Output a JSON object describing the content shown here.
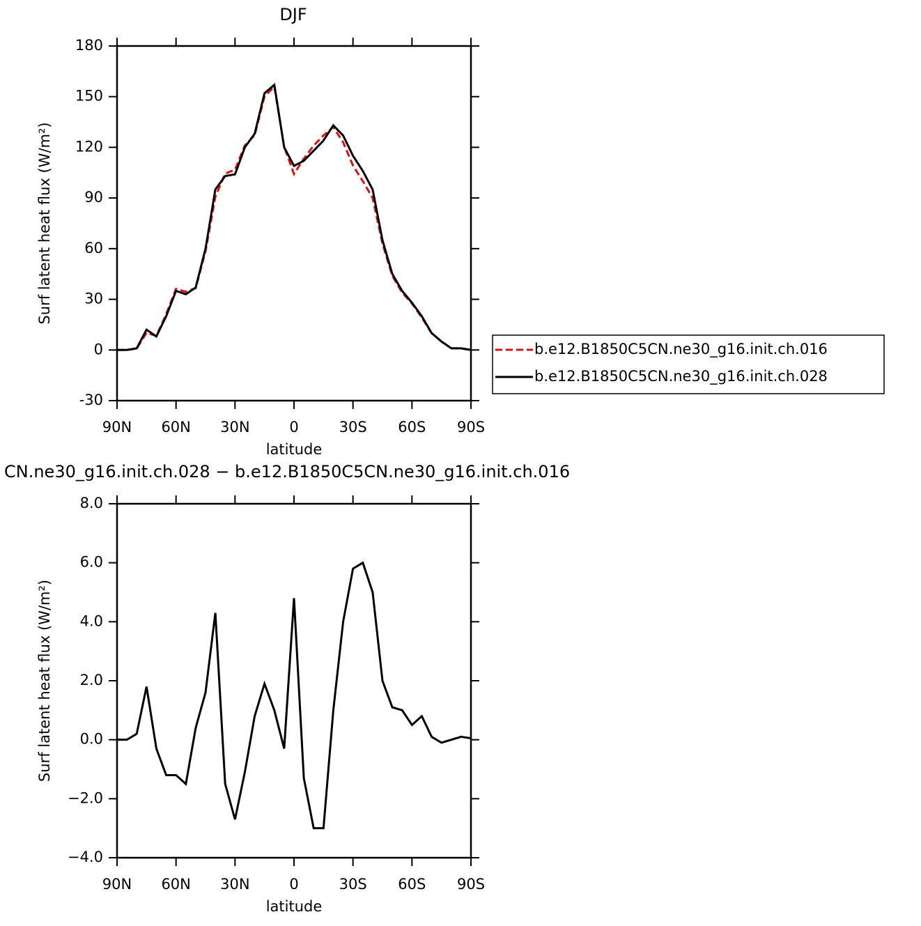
{
  "chart_data": [
    {
      "type": "line",
      "title": "DJF",
      "x_label": "latitude",
      "y_label": "Surf latent heat flux (W/m²)",
      "x": [
        90,
        85,
        80,
        75,
        70,
        65,
        60,
        55,
        50,
        45,
        40,
        35,
        30,
        25,
        20,
        15,
        10,
        5,
        0,
        -5,
        -10,
        -15,
        -20,
        -25,
        -30,
        -35,
        -40,
        -45,
        -50,
        -55,
        -60,
        -65,
        -70,
        -75,
        -80,
        -85,
        -90
      ],
      "xlim": [
        90,
        -90
      ],
      "xticks": [
        {
          "value": 90,
          "label": "90N"
        },
        {
          "value": 60,
          "label": "60N"
        },
        {
          "value": 30,
          "label": "30N"
        },
        0,
        {
          "value": -30,
          "label": "30S"
        },
        {
          "value": -60,
          "label": "60S"
        },
        {
          "value": -90,
          "label": "90S"
        }
      ],
      "ylim": [
        -30,
        180
      ],
      "yticks": [
        -30,
        0,
        30,
        60,
        90,
        120,
        150,
        180
      ],
      "legend": "right",
      "series": [
        {
          "name": "b.e12.B1850C5CN.ne30_g16.init.ch.016",
          "color": "#e01010",
          "dash": "dashed",
          "values": [
            0,
            0,
            0.8,
            10.2,
            8.3,
            21.2,
            36.2,
            34.5,
            36.6,
            58.4,
            90.7,
            104.5,
            106.7,
            121.1,
            127.2,
            150.1,
            156,
            120.3,
            104.2,
            113.3,
            121,
            127,
            132,
            123,
            109.2,
            100,
            90,
            63,
            43.9,
            34,
            27.5,
            19.2,
            9.9,
            5.1,
            1,
            0.9,
            0
          ]
        },
        {
          "name": "b.e12.B1850C5CN.ne30_g16.init.ch.028",
          "color": "#000000",
          "dash": "solid",
          "values": [
            0,
            0,
            1,
            12,
            8,
            20,
            35,
            33,
            37,
            60,
            95,
            103,
            104,
            120,
            128,
            152,
            157,
            120,
            109,
            112,
            118,
            124,
            133,
            127,
            115,
            106,
            95,
            65,
            45,
            35,
            28,
            20,
            10,
            5,
            1,
            1,
            0
          ]
        }
      ]
    },
    {
      "type": "line",
      "title": "CN.ne30_g16.init.ch.028 − b.e12.B1850C5CN.ne30_g16.init.ch.016",
      "x_label": "latitude",
      "y_label": "Surf latent heat flux (W/m²)",
      "x": [
        90,
        85,
        80,
        75,
        70,
        65,
        60,
        55,
        50,
        45,
        40,
        35,
        30,
        25,
        20,
        15,
        10,
        5,
        0,
        -5,
        -10,
        -15,
        -20,
        -25,
        -30,
        -35,
        -40,
        -45,
        -50,
        -55,
        -60,
        -65,
        -70,
        -75,
        -80,
        -85,
        -90
      ],
      "xlim": [
        90,
        -90
      ],
      "xticks": [
        {
          "value": 90,
          "label": "90N"
        },
        {
          "value": 60,
          "label": "60N"
        },
        {
          "value": 30,
          "label": "30N"
        },
        0,
        {
          "value": -30,
          "label": "30S"
        },
        {
          "value": -60,
          "label": "60S"
        },
        {
          "value": -90,
          "label": "90S"
        }
      ],
      "ylim": [
        -4,
        8
      ],
      "yticks": [
        {
          "value": -4,
          "label": "−4.0"
        },
        {
          "value": -2,
          "label": "−2.0"
        },
        {
          "value": 0,
          "label": "0.0"
        },
        {
          "value": 2,
          "label": "2.0"
        },
        {
          "value": 4,
          "label": "4.0"
        },
        {
          "value": 6,
          "label": "6.0"
        },
        {
          "value": 8,
          "label": "8.0"
        }
      ],
      "series": [
        {
          "color": "#000000",
          "dash": "solid",
          "values": [
            0,
            0,
            0.2,
            1.8,
            -0.3,
            -1.2,
            -1.2,
            -1.5,
            0.4,
            1.6,
            4.3,
            -1.5,
            -2.7,
            -1.1,
            0.8,
            1.9,
            1.0,
            -0.3,
            4.8,
            -1.3,
            -3.0,
            -3.0,
            1.0,
            4.0,
            5.8,
            6.0,
            5.0,
            2.0,
            1.1,
            1.0,
            0.5,
            0.8,
            0.1,
            -0.1,
            0,
            0.1,
            0.05
          ]
        }
      ]
    }
  ]
}
